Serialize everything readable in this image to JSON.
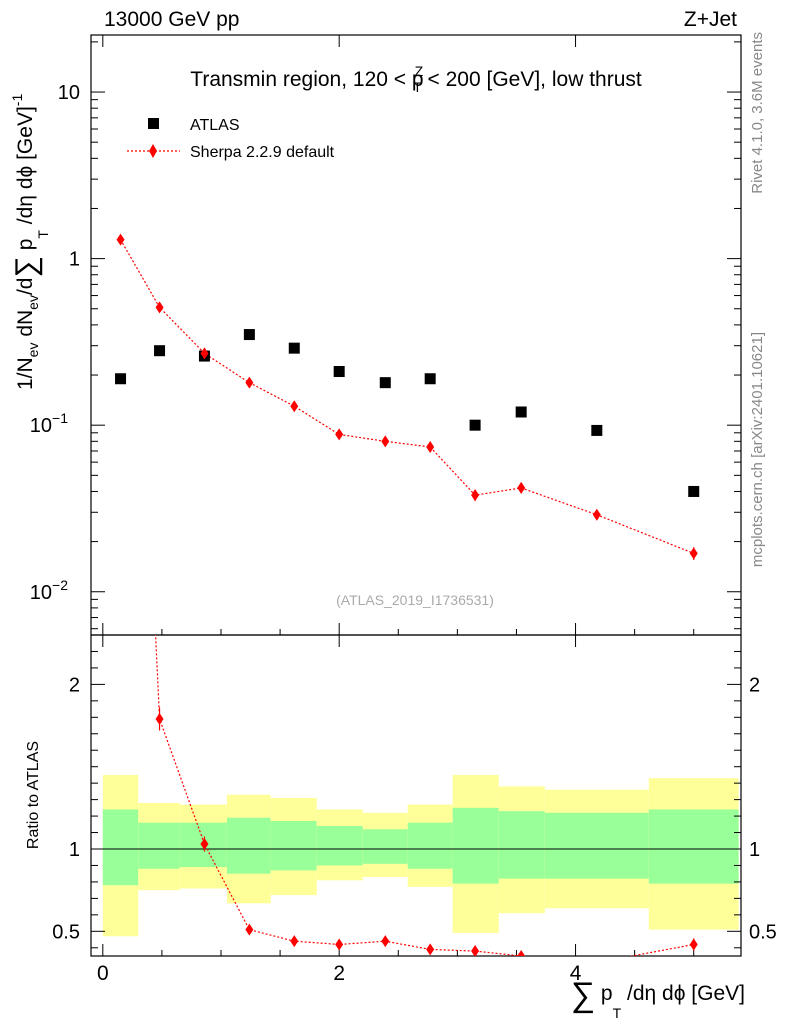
{
  "chart_data": {
    "type": "scatter",
    "header_left": "13000 GeV pp",
    "header_right": "Z+Jet",
    "title": "Transmin region, 120 < p",
    "title_sup": "Z",
    "title_sub": "T",
    "title_tail": " < 200 [GeV], low thrust",
    "ylabel": {
      "p1": "1/N",
      "p1_sub": "ev",
      "p2": " dN",
      "p2_sub": "ev",
      "p3": "/d",
      "sum": "∑",
      "p4": " p",
      "p4_sub": "T",
      "p5": " /dη dϕ  [GeV]",
      "p5_sup": "-1"
    },
    "xlabel": {
      "sum": "∑",
      "p": " p",
      "p_sub": "T",
      "rest": " /dη dϕ [GeV]"
    },
    "ratio_ylabel": "Ratio to ATLAS",
    "watermark": "(ATLAS_2019_I1736531)",
    "side_rivet": "Rivet 4.1.0,  3.6M events",
    "side_mcplots": "mcplots.cern.ch [arXiv:2401.10621]",
    "legend": {
      "data": "ATLAS",
      "mc": "Sherpa 2.2.9 default"
    },
    "xlim": [
      -0.1,
      5.4
    ],
    "ylim_main": [
      0.0055,
      22
    ],
    "ylim_ratio": [
      0.35,
      2.3
    ],
    "x_ticks": [
      "0",
      "2",
      "4"
    ],
    "y_ticks_main": [
      {
        "value": 10,
        "base": "10",
        "exp": ""
      },
      {
        "value": 1,
        "base": "1",
        "exp": ""
      },
      {
        "value": 0.1,
        "base": "10",
        "exp": "−1"
      },
      {
        "value": 0.01,
        "base": "10",
        "exp": "−2"
      }
    ],
    "y_ticks_ratio": [
      {
        "value": 2,
        "label": "2"
      },
      {
        "value": 1,
        "label": "1"
      },
      {
        "value": 0.5,
        "label": "0.5"
      }
    ],
    "bins": [
      {
        "lo": 0.0,
        "hi": 0.3,
        "data": 0.19,
        "mc": 1.3,
        "mc_err": 0.05,
        "ratio": 6.8,
        "green": [
          0.78,
          1.24
        ],
        "yellow": [
          0.47,
          1.45
        ]
      },
      {
        "lo": 0.3,
        "hi": 0.65,
        "data": 0.28,
        "mc": 0.51,
        "mc_err": 0.02,
        "ratio": 1.79,
        "green": [
          0.88,
          1.16
        ],
        "yellow": [
          0.75,
          1.28
        ]
      },
      {
        "lo": 0.65,
        "hi": 1.05,
        "data": 0.26,
        "mc": 0.27,
        "mc_err": 0.012,
        "ratio": 1.03,
        "green": [
          0.89,
          1.16
        ],
        "yellow": [
          0.76,
          1.27
        ]
      },
      {
        "lo": 1.05,
        "hi": 1.42,
        "data": 0.35,
        "mc": 0.18,
        "mc_err": 0.008,
        "ratio": 0.51,
        "green": [
          0.85,
          1.19
        ],
        "yellow": [
          0.67,
          1.33
        ]
      },
      {
        "lo": 1.42,
        "hi": 1.81,
        "data": 0.29,
        "mc": 0.13,
        "mc_err": 0.006,
        "ratio": 0.44,
        "green": [
          0.87,
          1.17
        ],
        "yellow": [
          0.72,
          1.31
        ]
      },
      {
        "lo": 1.81,
        "hi": 2.2,
        "data": 0.21,
        "mc": 0.088,
        "mc_err": 0.004,
        "ratio": 0.42,
        "green": [
          0.9,
          1.14
        ],
        "yellow": [
          0.81,
          1.24
        ]
      },
      {
        "lo": 2.2,
        "hi": 2.58,
        "data": 0.18,
        "mc": 0.08,
        "mc_err": 0.005,
        "ratio": 0.44,
        "green": [
          0.91,
          1.12
        ],
        "yellow": [
          0.83,
          1.22
        ]
      },
      {
        "lo": 2.58,
        "hi": 2.96,
        "data": 0.19,
        "mc": 0.074,
        "mc_err": 0.005,
        "ratio": 0.39,
        "green": [
          0.88,
          1.16
        ],
        "yellow": [
          0.77,
          1.27
        ]
      },
      {
        "lo": 2.96,
        "hi": 3.35,
        "data": 0.1,
        "mc": 0.038,
        "mc_err": 0.003,
        "ratio": 0.38,
        "green": [
          0.79,
          1.25
        ],
        "yellow": [
          0.49,
          1.45
        ]
      },
      {
        "lo": 3.35,
        "hi": 3.74,
        "data": 0.12,
        "mc": 0.042,
        "mc_err": 0.003,
        "ratio": 0.35,
        "green": [
          0.82,
          1.23
        ],
        "yellow": [
          0.61,
          1.38
        ]
      },
      {
        "lo": 3.74,
        "hi": 4.62,
        "data": 0.093,
        "mc": 0.029,
        "mc_err": 0.002,
        "ratio": 0.31,
        "green": [
          0.82,
          1.22
        ],
        "yellow": [
          0.64,
          1.36
        ]
      },
      {
        "lo": 4.62,
        "hi": 5.38,
        "data": 0.04,
        "mc": 0.017,
        "mc_err": 0.0015,
        "ratio": 0.42,
        "green": [
          0.79,
          1.24
        ],
        "yellow": [
          0.51,
          1.43
        ]
      }
    ],
    "x_points": [
      0.15,
      0.48,
      0.86,
      1.24,
      1.62,
      2.0,
      2.39,
      2.77,
      3.15,
      3.54,
      4.18,
      5.0
    ],
    "colors": {
      "mc": "#ff0000",
      "data": "#000000",
      "green": "#99ff99",
      "yellow": "#ffff99"
    }
  }
}
